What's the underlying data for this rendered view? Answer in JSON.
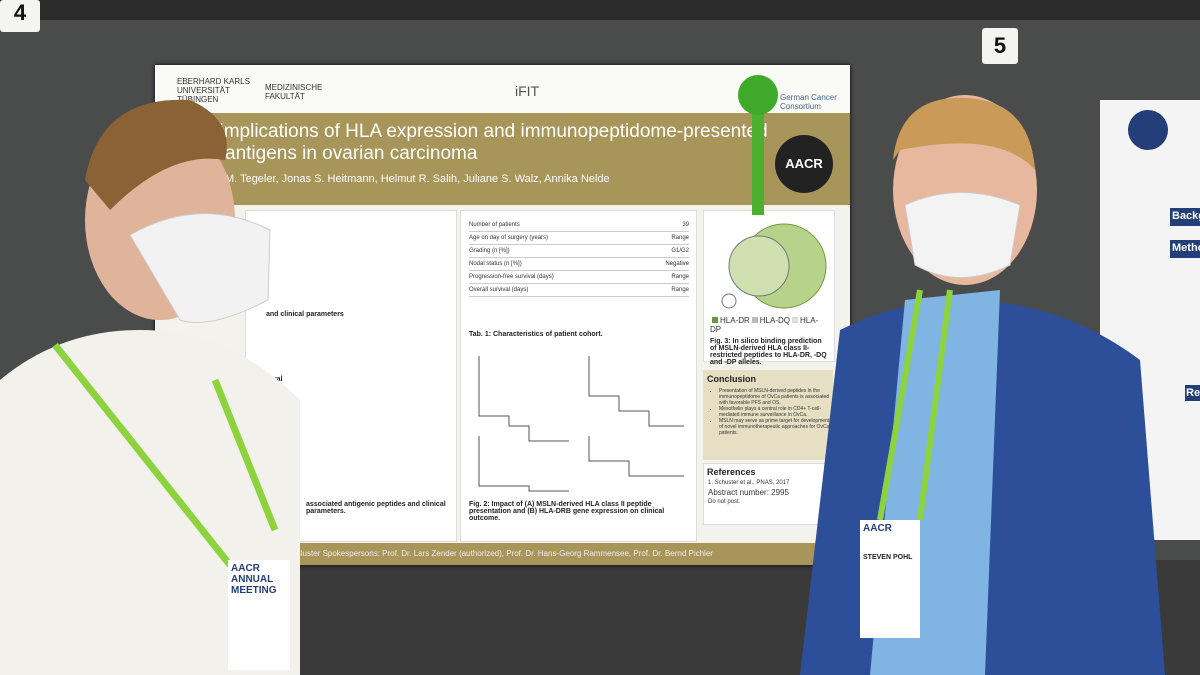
{
  "board_numbers": [
    "4",
    "5"
  ],
  "poster": {
    "institutions": [
      "EBERHARD KARLS UNIVERSITÄT TÜBINGEN",
      "MEDIZINISCHE FAKULTÄT",
      "iFIT",
      "German Cancer Consortium"
    ],
    "title_lines": [
      "l implications of HLA expression and immunopeptidome-presented",
      "antigens in ovarian carcinoma"
    ],
    "authors": "M. Tegeler, Jonas S. Heitmann, Helmut R. Salih, Juliane S. Walz, Annika Nelde",
    "badge": "AACR",
    "methods_heading": "and clinical parameters",
    "survival_heading": "survival",
    "table_rows": [
      [
        "Number of patients",
        "39"
      ],
      [
        "Age on day of surgery (years)",
        "Range"
      ],
      [
        "Grading (n [%])",
        "G1/G2"
      ],
      [
        "Nodal status (n [%])",
        "Negative"
      ],
      [
        "Progression-free survival (days)",
        "Range"
      ],
      [
        "Overall survival (days)",
        "Range"
      ]
    ],
    "table_caption": "Tab. 1: Characteristics of patient cohort.",
    "fig2_caption": "Fig. 2: Impact of (A) MSLN-derived HLA class II peptide presentation and (B) HLA-DRB gene expression on clinical outcome.",
    "fig1_caption": "associated antigenic peptides and clinical parameters.",
    "legend": [
      "HLA-DR",
      "HLA-DQ",
      "HLA-DP"
    ],
    "fig3_caption": "Fig. 3: In silico binding prediction of MSLN-derived HLA class II-restricted peptides to HLA-DR, -DQ and -DP alleles.",
    "conclusion_heading": "Conclusion",
    "conclusion_items": [
      "Presentation of MSLN-derived peptides in the immunopeptidome of OvCa patients is associated with favorable PFS and OS.",
      "Mesothelin plays a central role in CD4+ T-cell-mediated immune surveillance in OvCa.",
      "MSLN may serve as prime target for development of novel immunotherapeutic approaches for OvCa patients."
    ],
    "references_heading": "References",
    "reference": "1. Schuster et al., PNAS, 2017",
    "abstract_number": "Abstract number: 2995",
    "do_not_post": "Do not post.",
    "footer": "Cluster Spokespersons: Prof. Dr. Lars Zender (authorized), Prof. Dr. Hans-Georg Rammensee, Prof. Dr. Bernd Pichler"
  },
  "right_poster": {
    "headings": [
      "Backgr",
      "Metho",
      "Resu"
    ]
  },
  "badges": {
    "left": [
      "AACR",
      "ANNUAL",
      "MEETING"
    ],
    "right_name": "STEVEN POHL"
  }
}
